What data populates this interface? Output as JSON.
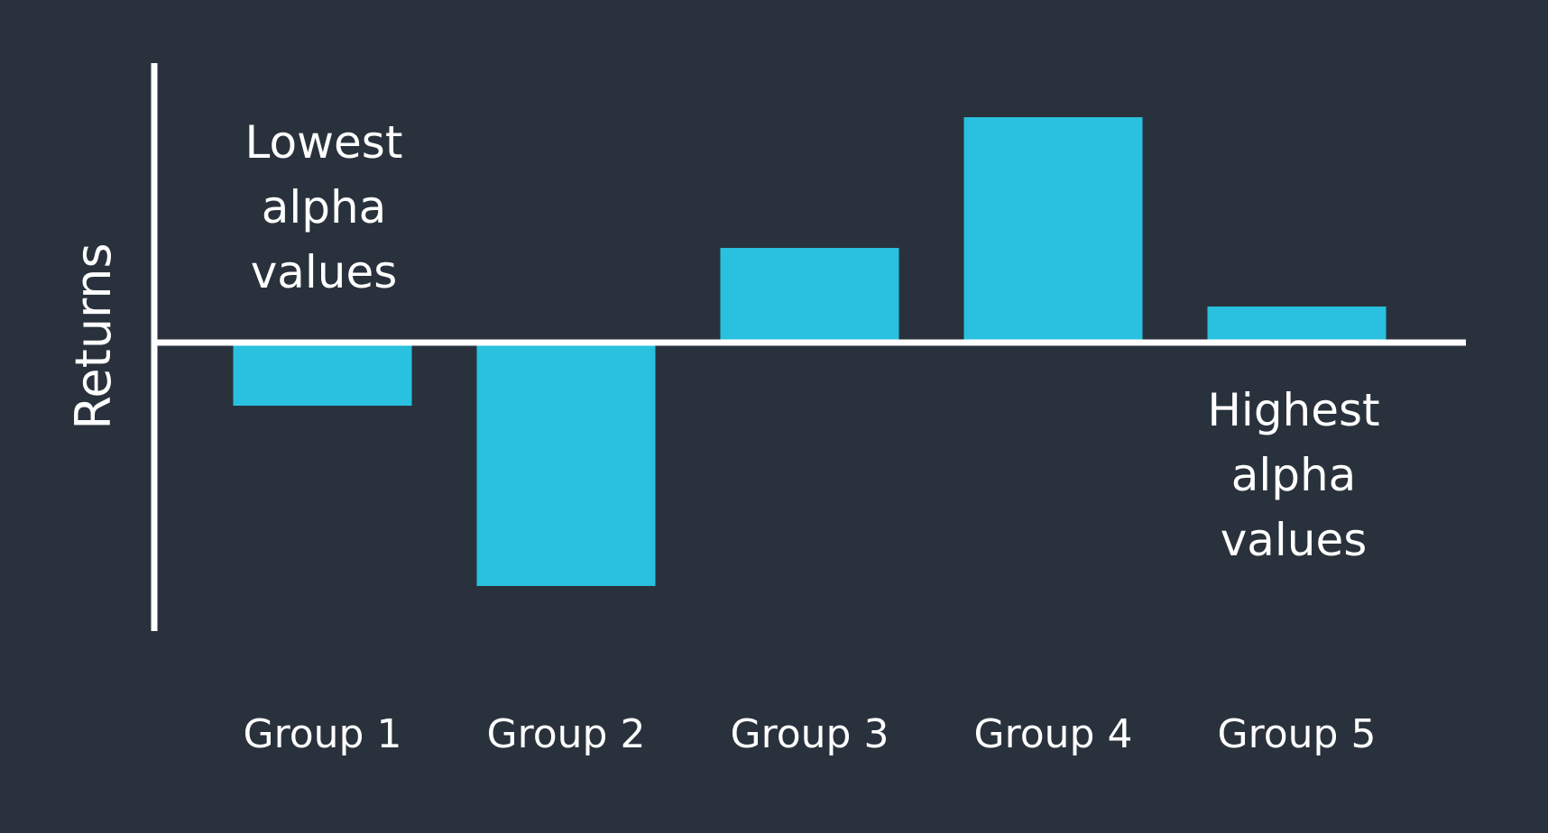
{
  "chart_data": {
    "type": "bar",
    "title": "",
    "xlabel": "",
    "ylabel": "Returns",
    "categories": [
      "Group 1",
      "Group 2",
      "Group 3",
      "Group 4",
      "Group 5"
    ],
    "values": [
      -0.7,
      -2.7,
      1.05,
      2.5,
      0.4
    ],
    "ylim": [
      -3.2,
      3.1
    ],
    "grid": false,
    "legend": "none",
    "annotations": [
      {
        "lines": [
          "Lowest",
          "alpha",
          "values"
        ],
        "near": "Group 1"
      },
      {
        "lines": [
          "Highest",
          "alpha",
          "values"
        ],
        "near": "Group 5"
      }
    ]
  },
  "colors": {
    "background": "#29323c",
    "bar": "#29c1df",
    "axis": "#ffffff",
    "text": "#ffffff"
  }
}
